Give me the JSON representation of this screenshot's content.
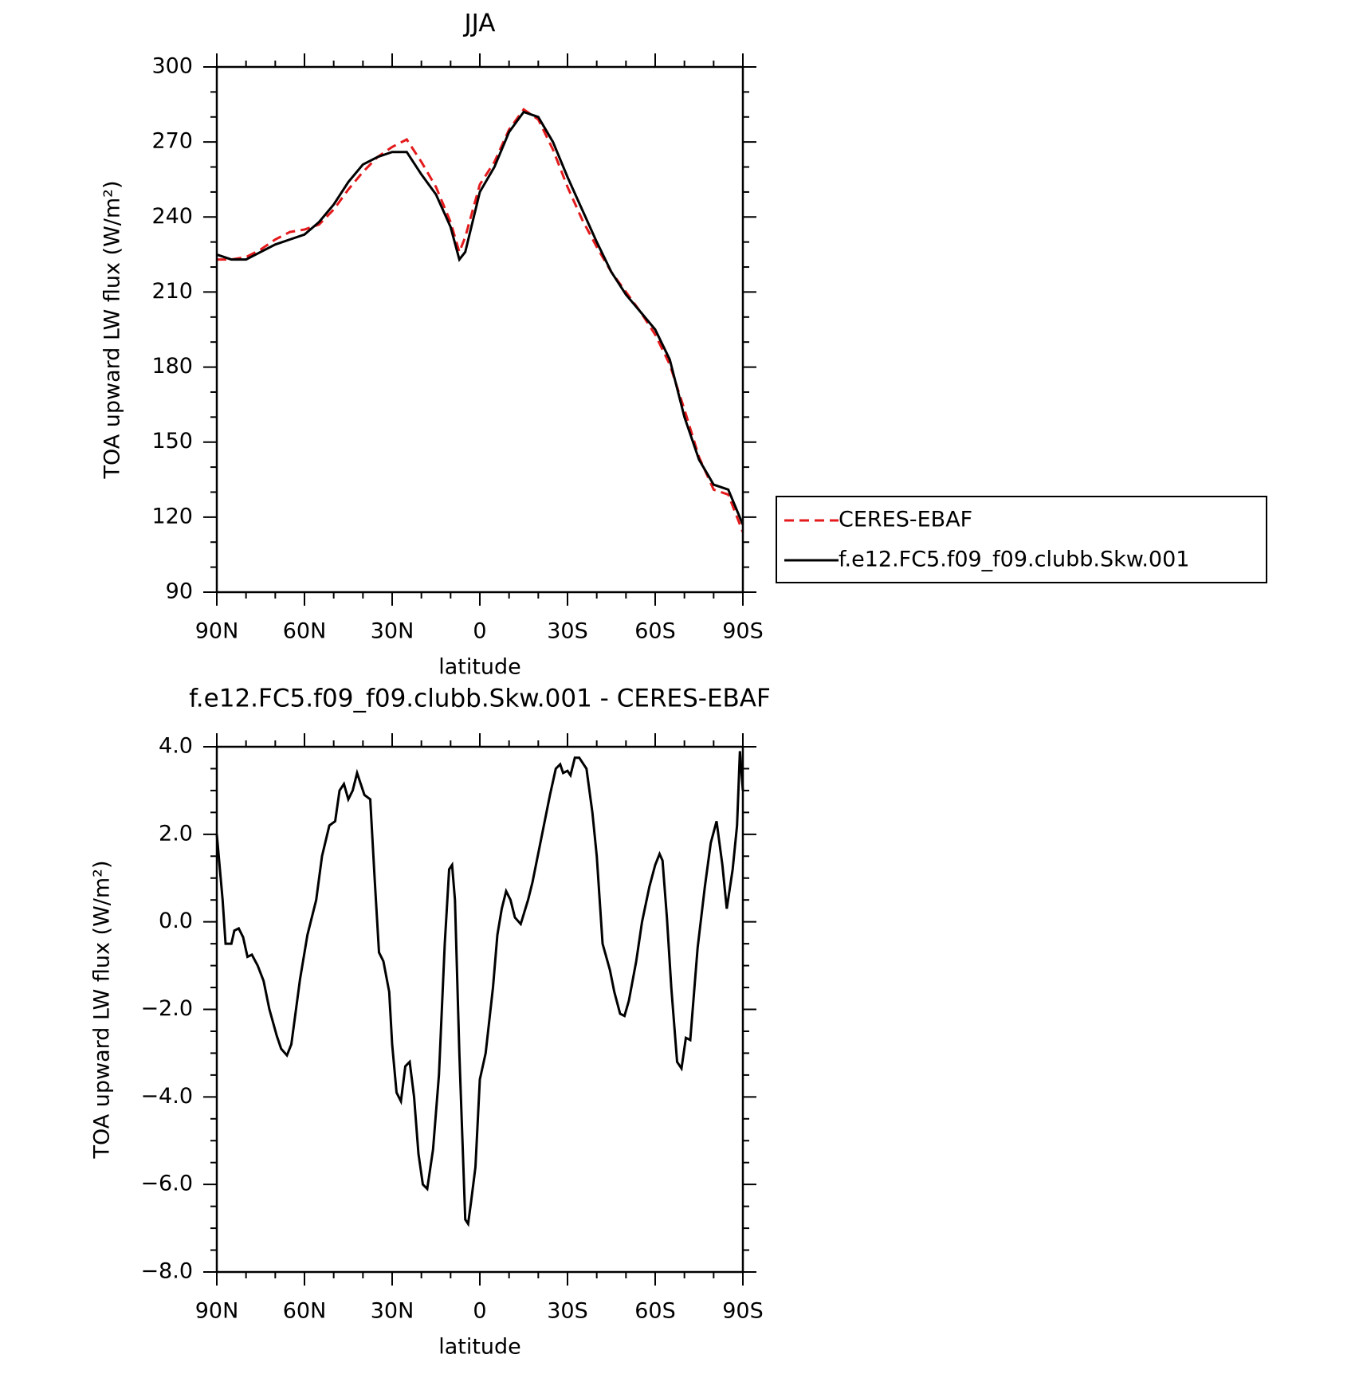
{
  "chart_data": [
    {
      "type": "line",
      "title": "JJA",
      "x_label": "latitude",
      "y_label": "TOA upward LW flux (W/m²)",
      "xlim": [
        90,
        -90
      ],
      "xticks": [
        {
          "value": 90,
          "label": "90N"
        },
        {
          "value": 60,
          "label": "60N"
        },
        {
          "value": 30,
          "label": "30N"
        },
        0,
        {
          "value": -30,
          "label": "30S"
        },
        {
          "value": -60,
          "label": "60S"
        },
        {
          "value": -90,
          "label": "90S"
        }
      ],
      "ylim": [
        90,
        300
      ],
      "yticks": [
        90,
        120,
        150,
        180,
        210,
        240,
        270,
        300
      ],
      "legend": "right",
      "x": [
        90,
        85,
        80,
        75,
        70,
        65,
        60,
        55,
        50,
        45,
        40,
        35,
        30,
        25,
        20,
        15,
        10,
        7,
        5,
        0,
        -5,
        -10,
        -15,
        -20,
        -25,
        -30,
        -35,
        -40,
        -45,
        -50,
        -55,
        -60,
        -65,
        -70,
        -75,
        -80,
        -85,
        -90
      ],
      "series": [
        {
          "name": "CERES-EBAF",
          "color": "#e41a1c",
          "dashed": true,
          "values": [
            223,
            223,
            224,
            227,
            231,
            234,
            235,
            237,
            243,
            251,
            258,
            264,
            268,
            271,
            262,
            252,
            238,
            226,
            232,
            253,
            262,
            275,
            283,
            279,
            267,
            252,
            239,
            228,
            218,
            210,
            202,
            193,
            181,
            163,
            144,
            131,
            129,
            114
          ]
        },
        {
          "name": "f.e12.FC5.f09_f09.clubb.Skw.001",
          "color": "#000000",
          "dashed": false,
          "values": [
            225,
            223,
            223,
            226,
            229,
            231,
            233,
            238,
            245,
            254,
            261,
            264,
            266,
            266,
            257,
            249,
            236,
            223,
            226,
            250,
            260,
            274,
            282,
            280,
            270,
            256,
            243,
            230,
            218,
            209,
            202,
            195,
            183,
            160,
            143,
            133,
            131,
            117
          ]
        }
      ]
    },
    {
      "type": "line",
      "title": "f.e12.FC5.f09_f09.clubb.Skw.001 - CERES-EBAF",
      "x_label": "latitude",
      "y_label": "TOA upward LW flux (W/m²)",
      "xlim": [
        90,
        -90
      ],
      "xticks": [
        {
          "value": 90,
          "label": "90N"
        },
        {
          "value": 60,
          "label": "60N"
        },
        {
          "value": 30,
          "label": "30N"
        },
        0,
        {
          "value": -30,
          "label": "30S"
        },
        {
          "value": -60,
          "label": "60S"
        },
        {
          "value": -90,
          "label": "90S"
        }
      ],
      "ylim": [
        -8,
        4
      ],
      "yticks": [
        {
          "value": -8,
          "label": "−8.0"
        },
        {
          "value": -6,
          "label": "−6.0"
        },
        {
          "value": -4,
          "label": "−4.0"
        },
        {
          "value": -2,
          "label": "−2.0"
        },
        {
          "value": 0,
          "label": "0.0"
        },
        {
          "value": 2,
          "label": "2.0"
        },
        {
          "value": 4,
          "label": "4.0"
        }
      ],
      "x": [
        90,
        88,
        87,
        85,
        84,
        82.5,
        81,
        79.5,
        78,
        76,
        74,
        72,
        69.5,
        68,
        66,
        64.5,
        61.5,
        59,
        56,
        54,
        51.5,
        49.5,
        48,
        46.5,
        45,
        43.5,
        42,
        39.5,
        37.5,
        36,
        34.5,
        33,
        31,
        30,
        28.5,
        27,
        25.5,
        24,
        22.5,
        21,
        19.5,
        18,
        16,
        14,
        12,
        10.5,
        9.5,
        8.5,
        7,
        5,
        4,
        3,
        1.5,
        0,
        -2,
        -4.5,
        -6,
        -7.5,
        -9,
        -10.5,
        -12,
        -14,
        -16.5,
        -18,
        -21,
        -24,
        -26,
        -27.5,
        -28.5,
        -30,
        -31,
        -32.5,
        -34,
        -36.5,
        -38.5,
        -40,
        -42,
        -44.5,
        -46,
        -48,
        -49.5,
        -51,
        -53.5,
        -55.5,
        -58,
        -60,
        -61.5,
        -62.5,
        -64,
        -65.5,
        -67.5,
        -69,
        -70.5,
        -72,
        -74.5,
        -77,
        -79,
        -81,
        -83,
        -84.5,
        -86.5,
        -88,
        -89,
        -90
      ],
      "series": [
        {
          "color": "#000000",
          "dashed": false,
          "values": [
            2.0,
            0.5,
            -0.5,
            -0.5,
            -0.2,
            -0.15,
            -0.35,
            -0.8,
            -0.75,
            -1.0,
            -1.35,
            -2.0,
            -2.6,
            -2.9,
            -3.05,
            -2.8,
            -1.3,
            -0.3,
            0.5,
            1.5,
            2.2,
            2.3,
            3.0,
            3.15,
            2.8,
            3.0,
            3.4,
            2.9,
            2.8,
            1.0,
            -0.7,
            -0.9,
            -1.6,
            -2.8,
            -3.9,
            -4.1,
            -3.3,
            -3.2,
            -4.0,
            -5.3,
            -6.0,
            -6.1,
            -5.2,
            -3.5,
            -0.5,
            1.2,
            1.3,
            0.5,
            -3.0,
            -6.8,
            -6.9,
            -6.4,
            -5.6,
            -3.6,
            -3.0,
            -1.5,
            -0.3,
            0.3,
            0.7,
            0.5,
            0.1,
            -0.05,
            0.5,
            0.9,
            1.9,
            2.9,
            3.5,
            3.6,
            3.4,
            3.45,
            3.35,
            3.75,
            3.75,
            3.5,
            2.5,
            1.5,
            -0.5,
            -1.1,
            -1.6,
            -2.1,
            -2.15,
            -1.8,
            -0.9,
            0.0,
            0.8,
            1.3,
            1.55,
            1.4,
            0.1,
            -1.5,
            -3.2,
            -3.35,
            -2.65,
            -2.7,
            -0.6,
            0.8,
            1.8,
            2.3,
            1.3,
            0.3,
            1.2,
            2.2,
            3.9,
            3.0
          ]
        }
      ]
    }
  ]
}
